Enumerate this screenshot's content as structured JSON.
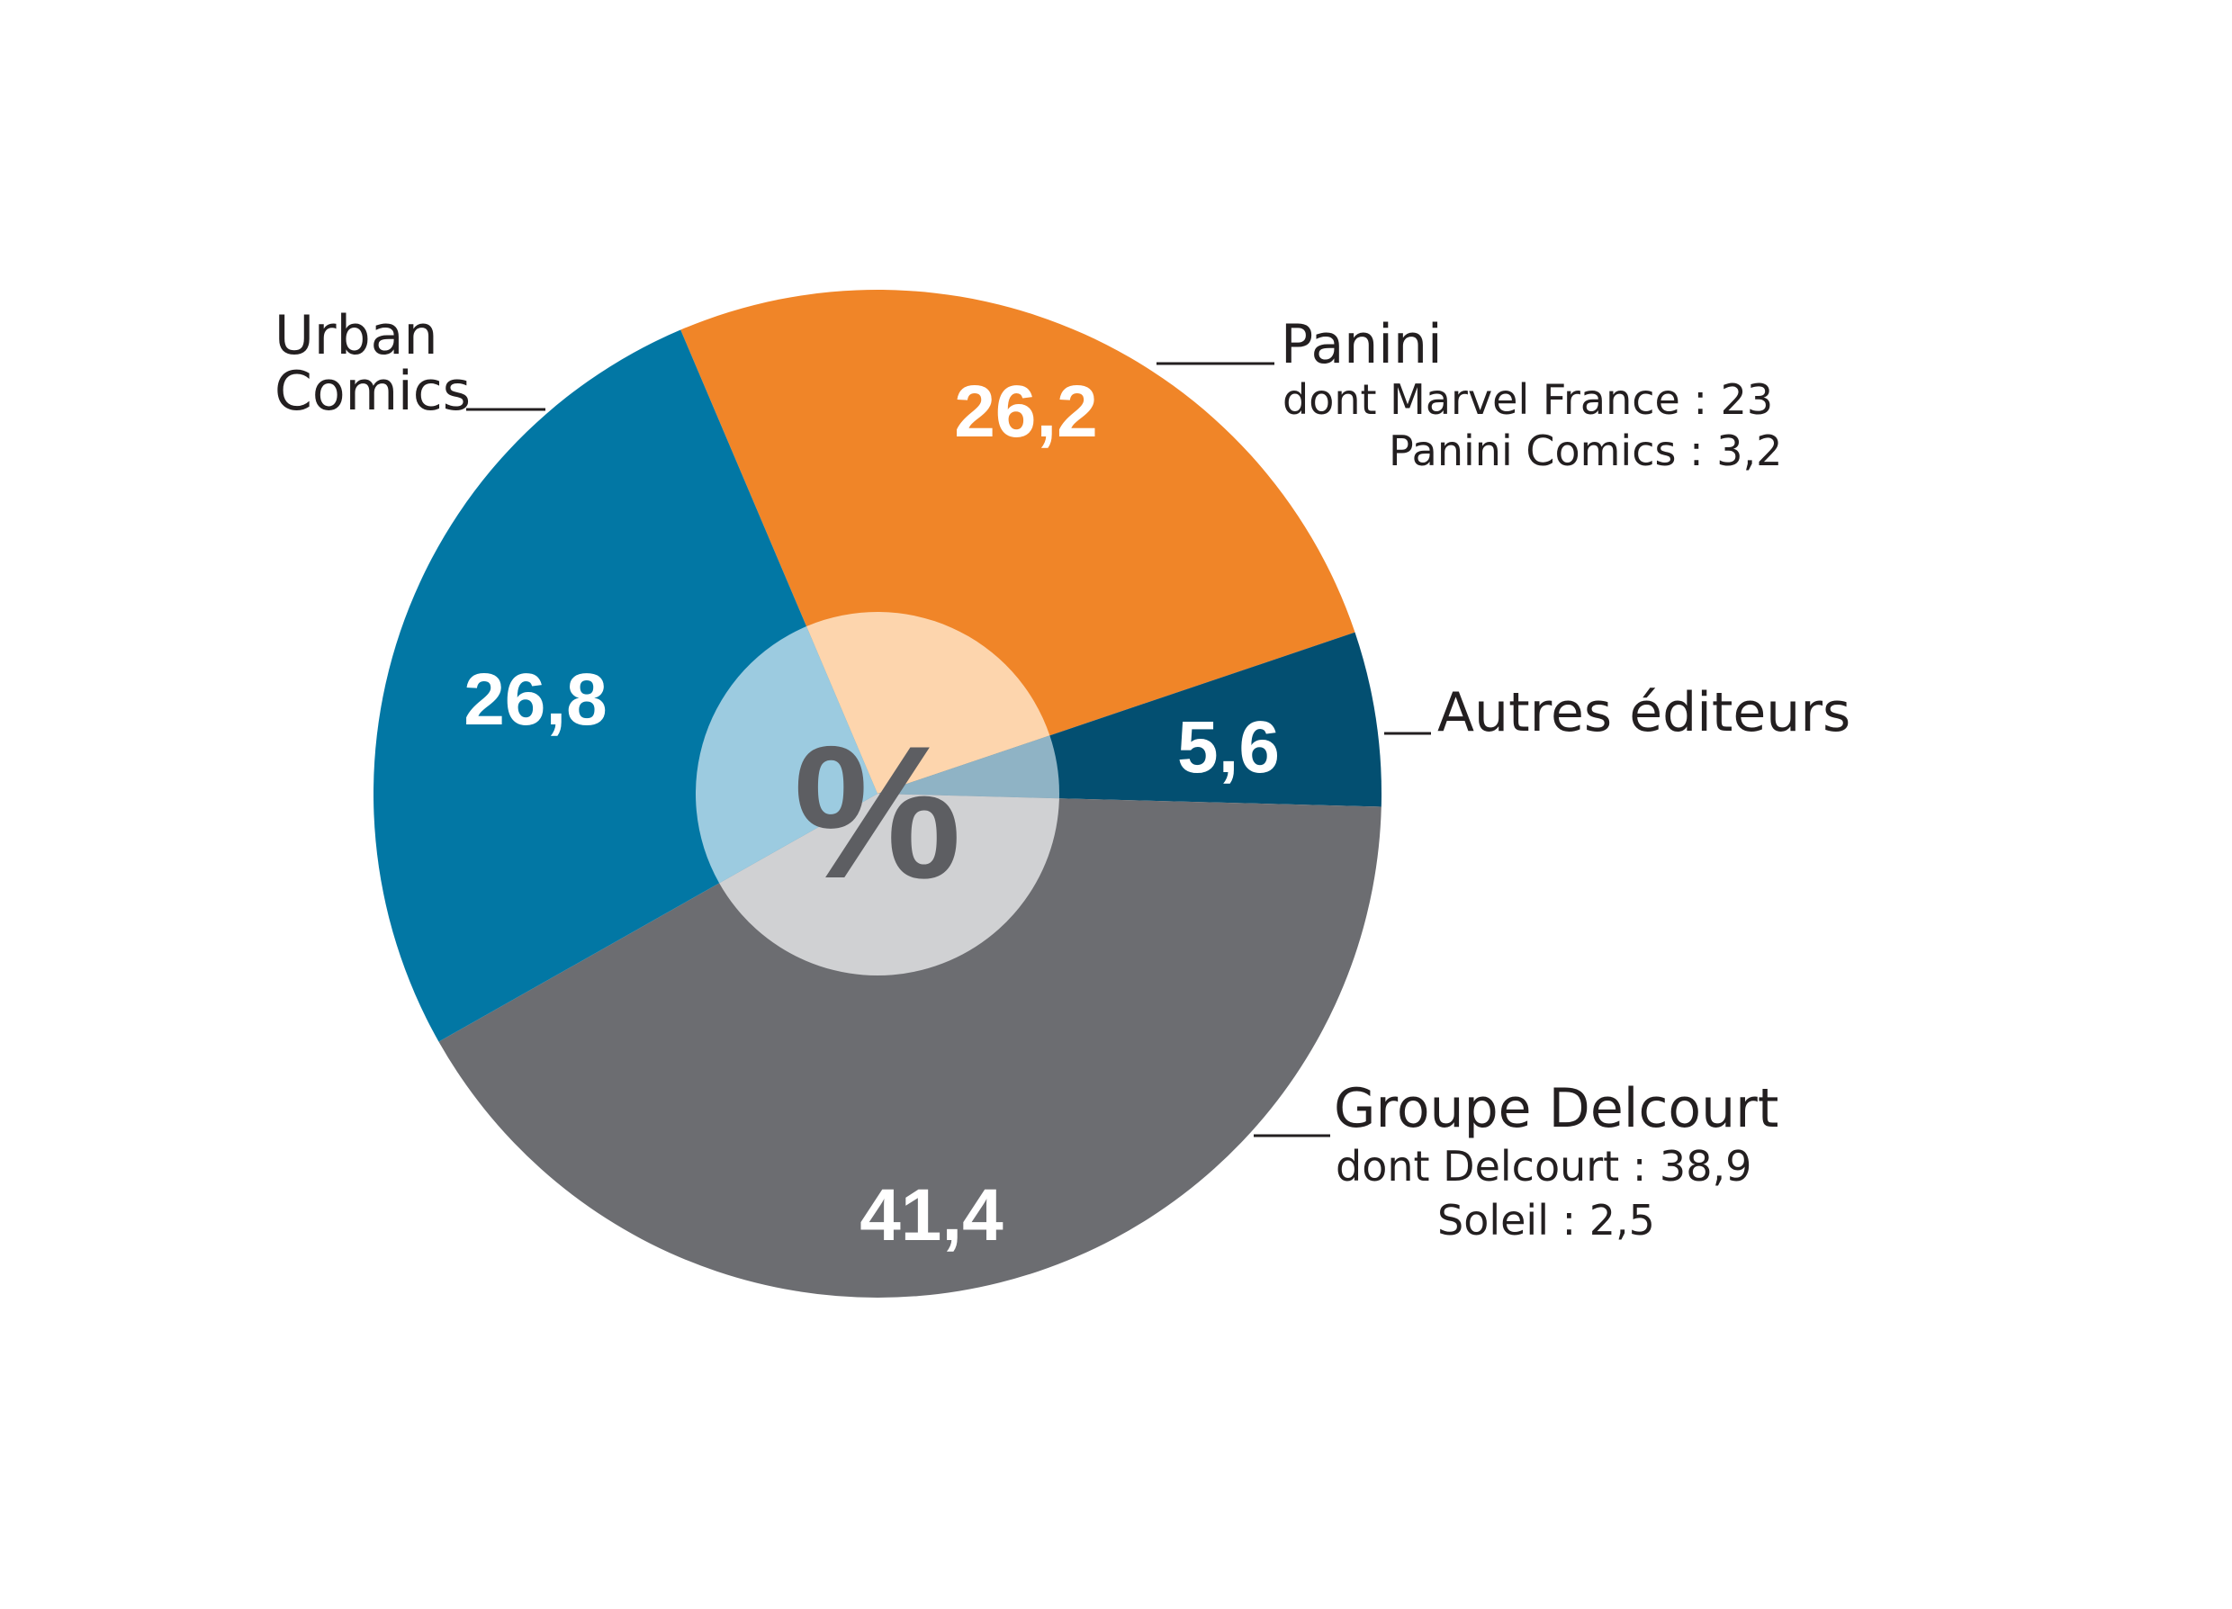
{
  "chart_data": {
    "type": "pie",
    "center_label": "%",
    "slices": [
      {
        "label": "Panini",
        "value": 26.2,
        "value_text": "26,2",
        "color": "#f08528",
        "details": [
          "dont Marvel France : 23",
          "Panini Comics : 3,2"
        ]
      },
      {
        "label": "Autres éditeurs",
        "value": 5.6,
        "value_text": "5,6",
        "color": "#034f71",
        "details": []
      },
      {
        "label": "Groupe Delcourt",
        "value": 41.4,
        "value_text": "41,4",
        "color": "#6c6d71",
        "details": [
          "dont Delcourt : 38,9",
          "Soleil : 2,5"
        ]
      },
      {
        "label": "Urban Comics",
        "label_lines": [
          "Urban",
          "Comics"
        ],
        "value": 26.8,
        "value_text": "26,8",
        "color": "#0277a4",
        "details": []
      }
    ],
    "inner_colors": [
      "#fdd5ad",
      "#8fb3c5",
      "#d0d1d3",
      "#9ccbe0"
    ]
  }
}
